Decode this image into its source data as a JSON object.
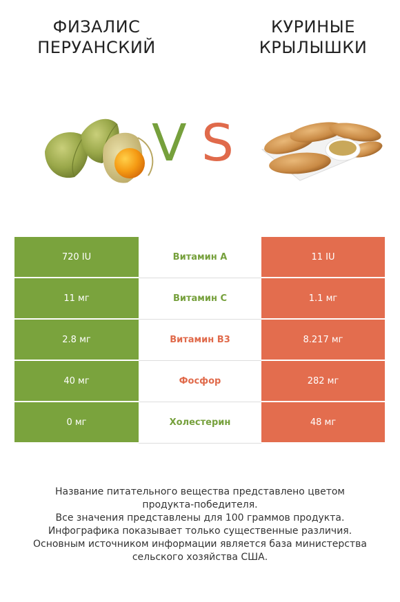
{
  "left_title": [
    "ФИЗАЛИС",
    "ПЕРУАНСКИЙ"
  ],
  "right_title": [
    "КУРИНЫЕ",
    "КРЫЛЫШКИ"
  ],
  "vs": {
    "v": "V",
    "s": "S"
  },
  "colors": {
    "left": "#7aa33d",
    "right": "#e36d4e",
    "winner_left_text": "#76a03c",
    "winner_right_text": "#e06a4b"
  },
  "rows": [
    {
      "left": "720 IU",
      "nutrient": "Витамин A",
      "right": "11 IU",
      "winner": "left"
    },
    {
      "left": "11 мг",
      "nutrient": "Витамин C",
      "right": "1.1 мг",
      "winner": "left"
    },
    {
      "left": "2.8 мг",
      "nutrient": "Витамин B3",
      "right": "8.217 мг",
      "winner": "right"
    },
    {
      "left": "40 мг",
      "nutrient": "Фосфор",
      "right": "282 мг",
      "winner": "right"
    },
    {
      "left": "0 мг",
      "nutrient": "Холестерин",
      "right": "48 мг",
      "winner": "left"
    }
  ],
  "footer": [
    "Название питательного вещества представлено цветом",
    "продукта-победителя.",
    "Все значения представлены для 100 граммов продукта.",
    "Инфографика показывает только существенные различия.",
    "Основным источником информации является база министерства",
    "сельского хозяйства США."
  ]
}
